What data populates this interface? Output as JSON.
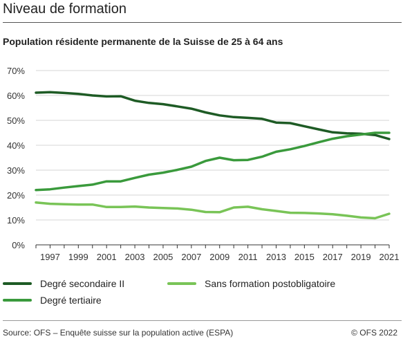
{
  "title": "Niveau de formation",
  "subtitle": "Population résidente permanente de la Suisse de 25 à 64 ans",
  "footer": {
    "source": "Source: OFS – Enquête suisse sur la population active (ESPA)",
    "copyright": "© OFS 2022"
  },
  "chart_data": {
    "type": "line",
    "title": "Niveau de formation",
    "subtitle": "Population résidente permanente de la Suisse de 25 à 64 ans",
    "xlabel": "",
    "ylabel": "",
    "x": [
      1996,
      1997,
      1998,
      1999,
      2000,
      2001,
      2002,
      2003,
      2004,
      2005,
      2006,
      2007,
      2008,
      2009,
      2010,
      2011,
      2012,
      2013,
      2014,
      2015,
      2016,
      2017,
      2018,
      2019,
      2020,
      2021
    ],
    "xticks": [
      1997,
      1999,
      2001,
      2003,
      2005,
      2007,
      2009,
      2011,
      2013,
      2015,
      2017,
      2019,
      2021
    ],
    "ylim": [
      0,
      70
    ],
    "yticks": [
      0,
      10,
      20,
      30,
      40,
      50,
      60,
      70
    ],
    "ytick_labels": [
      "0%",
      "10%",
      "20%",
      "30%",
      "40%",
      "50%",
      "60%",
      "70%"
    ],
    "grid": "horizontal",
    "legend_position": "bottom",
    "series": [
      {
        "name": "Degré secondaire II",
        "color": "#1e5b25",
        "values": [
          61.1,
          61.3,
          61.0,
          60.6,
          60.0,
          59.6,
          59.7,
          57.9,
          57.0,
          56.5,
          55.6,
          54.7,
          53.2,
          52.0,
          51.3,
          51.0,
          50.6,
          49.1,
          48.9,
          47.6,
          46.4,
          45.2,
          44.8,
          44.6,
          44.1,
          42.5
        ]
      },
      {
        "name": "Degré tertiaire",
        "color": "#3a9a3c",
        "values": [
          22.0,
          22.3,
          23.0,
          23.6,
          24.2,
          25.5,
          25.5,
          26.9,
          28.2,
          29.0,
          30.1,
          31.4,
          33.7,
          35.0,
          34.0,
          34.1,
          35.4,
          37.4,
          38.4,
          39.7,
          41.2,
          42.6,
          43.6,
          44.3,
          45.0,
          45.0
        ]
      },
      {
        "name": "Sans formation postobligatoire",
        "color": "#79c457",
        "values": [
          17.0,
          16.5,
          16.3,
          16.2,
          16.2,
          15.2,
          15.2,
          15.4,
          15.0,
          14.8,
          14.6,
          14.1,
          13.2,
          13.1,
          15.0,
          15.3,
          14.3,
          13.6,
          12.9,
          12.8,
          12.6,
          12.3,
          11.7,
          11.0,
          10.7,
          12.5
        ]
      }
    ]
  }
}
